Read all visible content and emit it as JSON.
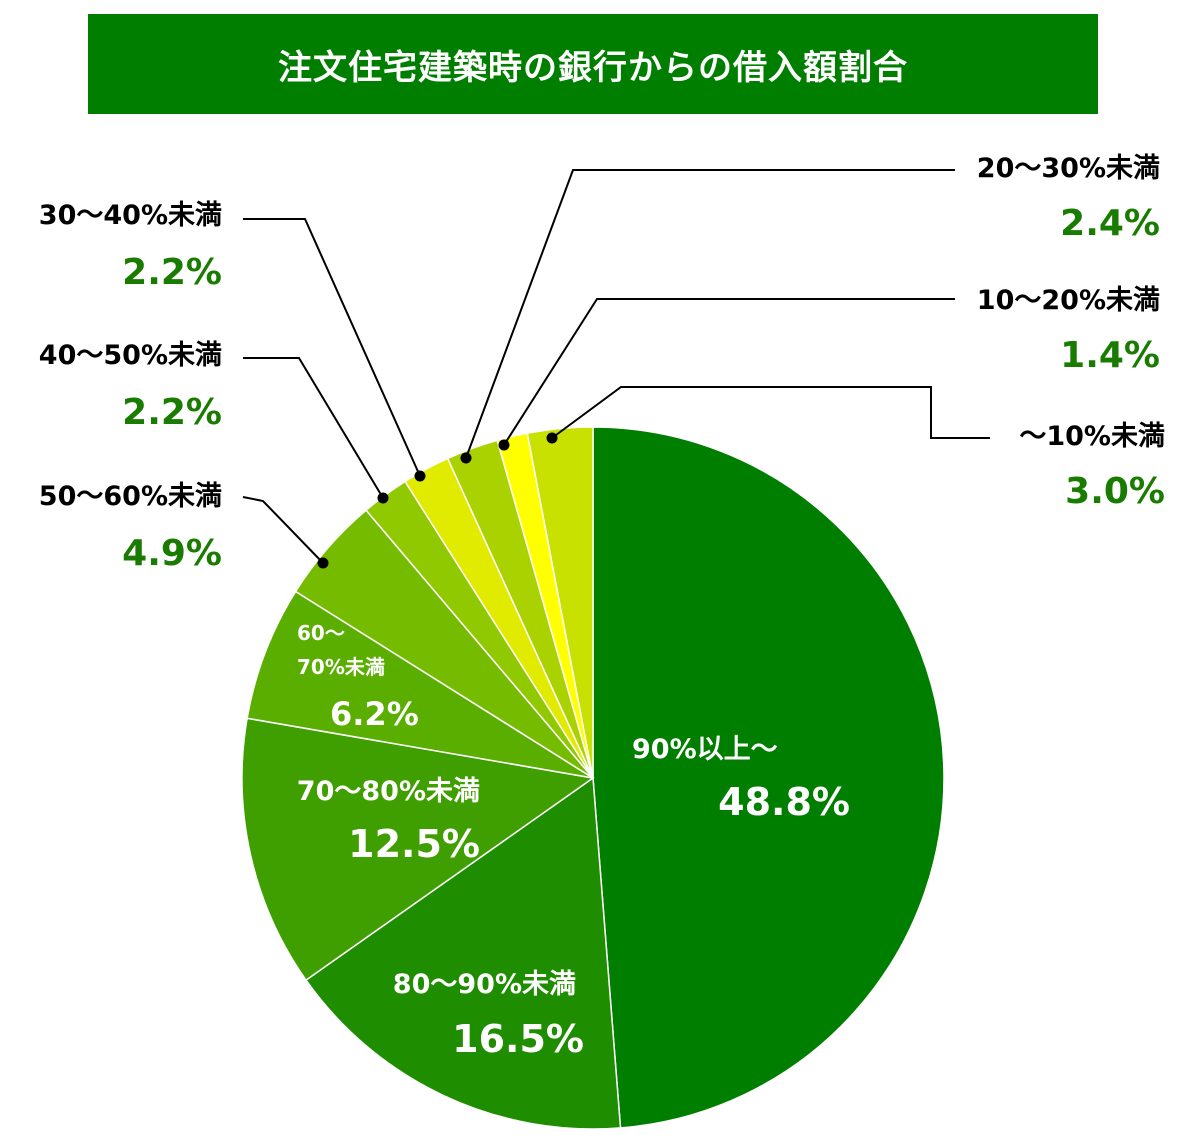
{
  "chart_data": {
    "type": "pie",
    "title": "注文住宅建築時の銀行からの借入額割合",
    "start": "12 o'clock",
    "direction": "clockwise",
    "slices": [
      {
        "label": "90%以上〜",
        "value": 48.8,
        "value_text": "48.8%",
        "color": "#007e00"
      },
      {
        "label": "80〜90%未満",
        "value": 16.5,
        "value_text": "16.5%",
        "color": "#1f8d00"
      },
      {
        "label": "70〜80%未満",
        "value": 12.5,
        "value_text": "12.5%",
        "color": "#3f9e00"
      },
      {
        "label": "60〜70%未満",
        "label_lines": [
          "60〜",
          "70%未満"
        ],
        "value": 6.2,
        "value_text": "6.2%",
        "color": "#5aae00"
      },
      {
        "label": "50〜60%未満",
        "value": 4.9,
        "value_text": "4.9%",
        "color": "#75bc00"
      },
      {
        "label": "40〜50%未満",
        "value": 2.2,
        "value_text": "2.2%",
        "color": "#91c900"
      },
      {
        "label": "30〜40%未満",
        "value": 2.2,
        "value_text": "2.2%",
        "color": "#e1eb00"
      },
      {
        "label": "20〜30%未満",
        "value": 2.4,
        "value_text": "2.4%",
        "color": "#a9d200"
      },
      {
        "label": "10〜20%未満",
        "value": 1.4,
        "value_text": "1.4%",
        "color": "#ffff00"
      },
      {
        "label": "〜10%未満",
        "value": 3.0,
        "value_text": "3.0%",
        "color": "#c9e100"
      }
    ],
    "legend": "none",
    "label_color_inside": "#ffffff",
    "label_color_outside_name": "#000000",
    "label_color_outside_value": "#197c00"
  }
}
